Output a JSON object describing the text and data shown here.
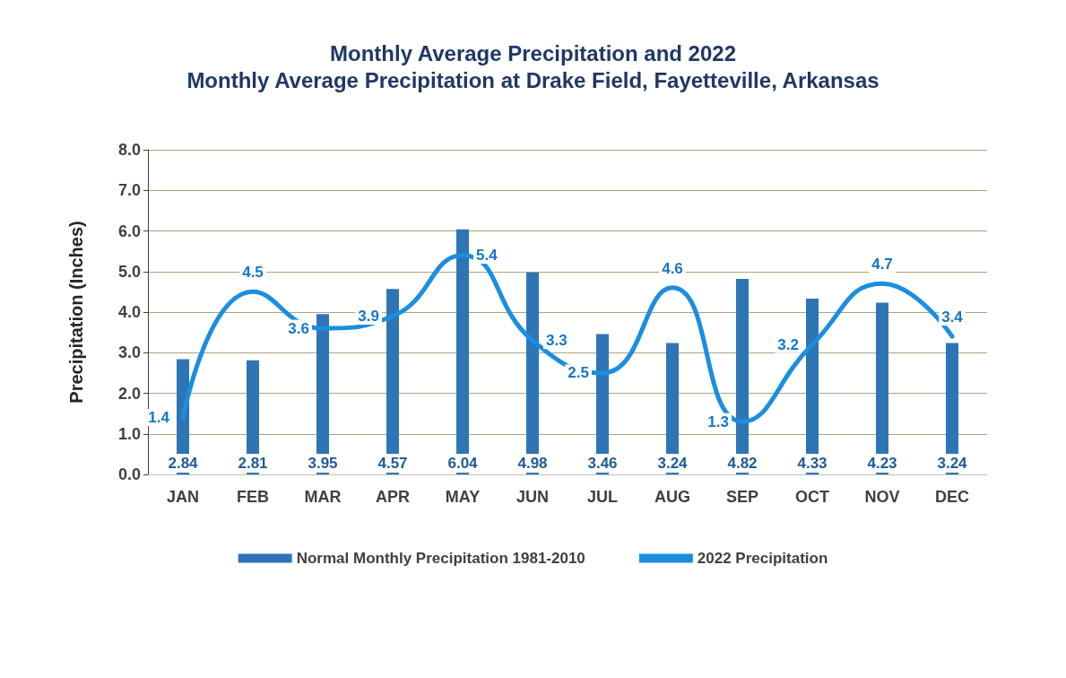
{
  "chart_data": {
    "type": "bar",
    "title": "Monthly Average Precipitation and 2022",
    "subtitle": "Monthly Average Precipitation at Drake Field, Fayetteville, Arkansas",
    "ylabel": "Precipitation (Inches)",
    "categories": [
      "JAN",
      "FEB",
      "MAR",
      "APR",
      "MAY",
      "JUN",
      "JUL",
      "AUG",
      "SEP",
      "OCT",
      "NOV",
      "DEC"
    ],
    "series": [
      {
        "name": "Normal Monthly Precipitation 1981-2010",
        "color": "#2e75b6",
        "values": [
          2.84,
          2.81,
          3.95,
          4.57,
          6.04,
          4.98,
          3.46,
          3.24,
          4.82,
          4.33,
          4.23,
          3.24
        ]
      },
      {
        "name": "2022 Precipitation",
        "type": "line",
        "color": "#1b8ee0",
        "values": [
          1.4,
          4.5,
          3.6,
          3.9,
          5.4,
          3.3,
          2.5,
          4.6,
          1.3,
          3.2,
          4.7,
          3.4
        ]
      }
    ],
    "ylim": [
      0,
      8
    ],
    "yticks": [
      {
        "value": 0,
        "label": "0.0"
      },
      {
        "value": 1,
        "label": "1.0"
      },
      {
        "value": 2,
        "label": "2.0"
      },
      {
        "value": 3,
        "label": "3.0"
      },
      {
        "value": 4,
        "label": "4.0"
      },
      {
        "value": 5,
        "label": "5.0"
      },
      {
        "value": 6,
        "label": "6.0"
      },
      {
        "value": 7,
        "label": "7.0"
      },
      {
        "value": 8,
        "label": "8.0"
      }
    ],
    "grid": "y",
    "legend": "bottom",
    "data_labels": true,
    "marker": "none",
    "line_style": "solid"
  }
}
